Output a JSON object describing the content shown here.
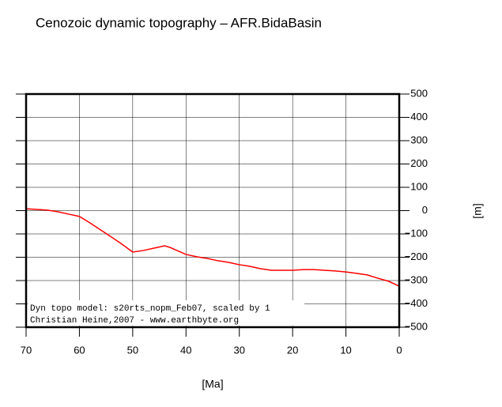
{
  "chart_data": {
    "type": "line",
    "title": "Cenozoic dynamic topography – AFR.BidaBasin",
    "xlabel": "[Ma]",
    "ylabel": "[m]",
    "annotations": [
      "Dyn topo model: s20rts_nopm_Feb07, scaled by 1",
      "Christian Heine,2007 - www.earthbyte.org"
    ],
    "x": [
      70,
      68,
      66,
      64,
      62,
      60,
      58,
      56,
      54,
      52,
      50,
      48,
      46,
      44,
      43,
      42,
      40,
      38,
      36,
      34,
      32,
      30,
      28,
      26,
      24,
      22,
      20,
      18,
      16,
      14,
      12,
      10,
      8,
      6,
      4,
      2,
      0
    ],
    "series": [
      {
        "name": "dynamic topography",
        "color": "#ff0000",
        "values": [
          8,
          5,
          2,
          -5,
          -15,
          -25,
          -53,
          -83,
          -113,
          -144,
          -178,
          -171,
          -161,
          -151,
          -158,
          -168,
          -188,
          -198,
          -205,
          -215,
          -222,
          -232,
          -239,
          -249,
          -256,
          -256,
          -256,
          -253,
          -253,
          -256,
          -259,
          -263,
          -269,
          -276,
          -290,
          -303,
          -324
        ]
      }
    ],
    "xlim": [
      70,
      0
    ],
    "xticks": [
      70,
      60,
      50,
      40,
      30,
      20,
      10,
      0
    ],
    "ylim": [
      -500,
      500
    ],
    "yticks": [
      {
        "value": -500,
        "label": "−500"
      },
      {
        "value": -400,
        "label": "−400"
      },
      {
        "value": -300,
        "label": "−300"
      },
      {
        "value": -200,
        "label": "−200"
      },
      {
        "value": -100,
        "label": "−100"
      },
      0,
      100,
      200,
      300,
      400,
      500
    ],
    "grid": true
  }
}
